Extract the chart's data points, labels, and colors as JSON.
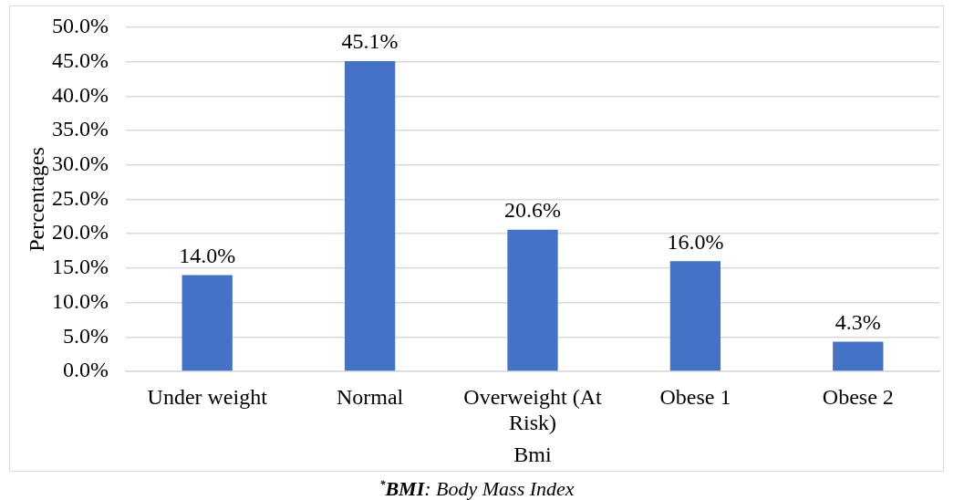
{
  "chart_data": {
    "type": "bar",
    "xlabel": "Bmi",
    "ylabel": "Percentages",
    "categories": [
      "Under weight",
      "Normal",
      "Overweight (At Risk)",
      "Obese 1",
      "Obese 2"
    ],
    "values": [
      14.0,
      45.1,
      20.6,
      16.0,
      4.3
    ],
    "value_labels": [
      "14.0%",
      "45.1%",
      "20.6%",
      "16.0%",
      "4.3%"
    ],
    "color": "#4472c4",
    "ylim": [
      0,
      50
    ],
    "yticks": [
      {
        "value": 0,
        "label": "0.0%"
      },
      {
        "value": 5,
        "label": "5.0%"
      },
      {
        "value": 10,
        "label": "10.0%"
      },
      {
        "value": 15,
        "label": "15.0%"
      },
      {
        "value": 20,
        "label": "20.0%"
      },
      {
        "value": 25,
        "label": "25.0%"
      },
      {
        "value": 30,
        "label": "30.0%"
      },
      {
        "value": 35,
        "label": "35.0%"
      },
      {
        "value": 40,
        "label": "40.0%"
      },
      {
        "value": 45,
        "label": "45.0%"
      },
      {
        "value": 50,
        "label": "50.0%"
      }
    ],
    "grid": "y",
    "annotations": [
      "$^{*}$BMI: Body Mass Index"
    ]
  }
}
